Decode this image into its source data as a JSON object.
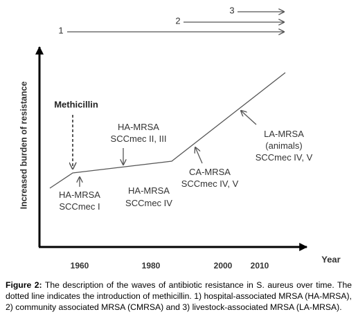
{
  "figure": {
    "waves": [
      "1",
      "2",
      "3"
    ],
    "y_axis_label": "Increased burden of resistance",
    "x_axis_label": "Year",
    "x_ticks": [
      "1960",
      "1980",
      "2000",
      "2010"
    ],
    "methicillin": "Methicillin",
    "annotations": [
      {
        "lines": [
          "HA-MRSA",
          "SCCmec II, III"
        ]
      },
      {
        "lines": [
          "HA-MRSA",
          "SCCmec I"
        ]
      },
      {
        "lines": [
          "HA-MRSA",
          "SCCmec IV"
        ]
      },
      {
        "lines": [
          "CA-MRSA",
          "SCCmec IV, V"
        ]
      },
      {
        "lines": [
          "LA-MRSA",
          "(animals)",
          "SCCmec IV, V"
        ]
      }
    ]
  },
  "caption": {
    "label": "Figure 2:",
    "text": "The description of the waves of antibiotic resistance in S. aureus over time. The dotted line indicates the introduction of methicillin. 1) hospital-associated MRSA (HA-MRSA), 2) community associated MRSA (CMRSA) and 3) livestock-associated MRSA (LA-MRSA)."
  }
}
